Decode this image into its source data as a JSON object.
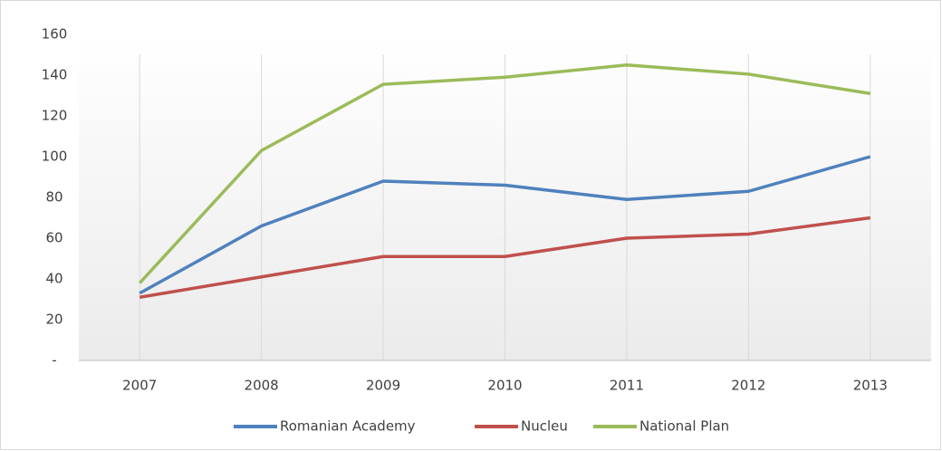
{
  "chart_data": {
    "type": "line",
    "categories": [
      "2007",
      "2008",
      "2009",
      "2010",
      "2011",
      "2012",
      "2013"
    ],
    "series": [
      {
        "name": "Romanian Academy",
        "color": "#4f81bd",
        "values": [
          33,
          66,
          88,
          86,
          79,
          83,
          100
        ]
      },
      {
        "name": "Nucleu",
        "color": "#c0504d",
        "values": [
          31,
          41,
          51,
          51,
          60,
          62,
          70
        ]
      },
      {
        "name": "National Plan",
        "color": "#9bbb59",
        "values": [
          38,
          103,
          135.5,
          139,
          145,
          140.5,
          131
        ]
      }
    ],
    "ylim": [
      0,
      160
    ],
    "yticks": [
      {
        "value": 0,
        "label": "-"
      },
      20,
      40,
      60,
      80,
      100,
      120,
      140,
      160
    ],
    "grid": true,
    "legend": "bottom"
  }
}
